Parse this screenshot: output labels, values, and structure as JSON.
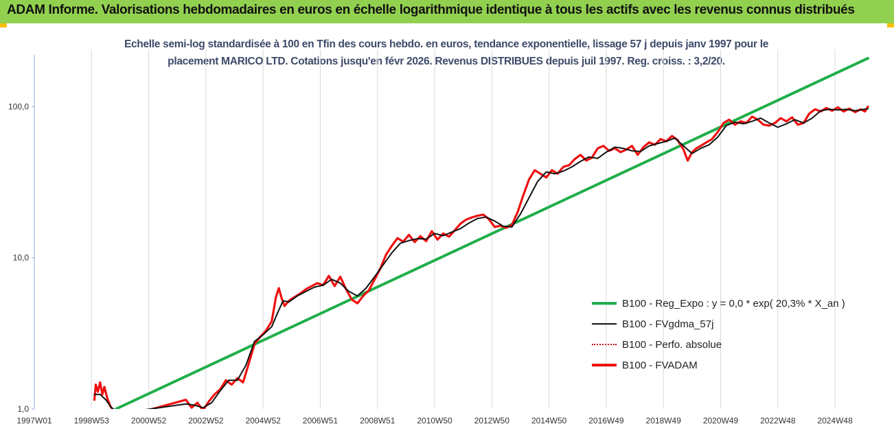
{
  "header": {
    "title": "ADAM Informe. Valorisations hebdomadaires en euros en échelle logarithmique identique à tous les actifs avec les revenus connus distribués",
    "band_color": "#92d050",
    "corner_color": "#f6c000"
  },
  "subtitle": {
    "line1": "Echelle semi-log standardisée à 100 en Tfin des cours hebdo. en euros, tendance exponentielle, lissage 57 j depuis janv 1997 pour le",
    "line2": "placement MARICO LTD. Cotations jusqu'en févr 2026. Revenus DISTRIBUES depuis juil 1997. Reg. croiss. : 3,2/20."
  },
  "chart_data": {
    "type": "line",
    "y_scale": "log",
    "ylim": [
      1,
      220
    ],
    "y_ticks": [
      1,
      10,
      100
    ],
    "y_tick_labels": [
      "1,0",
      "10,0",
      "100,0"
    ],
    "xlim": [
      1997.0,
      2026.15
    ],
    "x_ticks": [
      1997.0,
      1999.0,
      2001.0,
      2003.0,
      2005.0,
      2007.0,
      2009.0,
      2011.0,
      2013.0,
      2015.0,
      2017.0,
      2019.0,
      2021.0,
      2023.0,
      2025.0
    ],
    "x_tick_labels": [
      "1997W01",
      "1998W53",
      "2000W52",
      "2002W52",
      "2004W52",
      "2006W51",
      "2008W51",
      "2010W50",
      "2012W50",
      "2014W50",
      "2016W49",
      "2018W49",
      "2020W49",
      "2022W48",
      "2024W48"
    ],
    "grid": "vertical",
    "legend_position": "right",
    "series": [
      {
        "name": "B100 - Reg_Expo : y = 0,0 * exp( 20,3% *  X_an )",
        "color": "#1fae4a",
        "style": "line",
        "x": [
          1999.85,
          2026.15
        ],
        "y": [
          1.0,
          209.0
        ]
      },
      {
        "name": "B100 - FVgdma_57j",
        "color": "#111111",
        "style": "line",
        "x": [
          1999.1,
          1999.3,
          1999.5,
          1999.7,
          1999.9,
          2000.05,
          2002.3,
          2002.6,
          2002.9,
          2003.2,
          2003.5,
          2003.8,
          2004.1,
          2004.4,
          2004.7,
          2005.0,
          2005.3,
          2005.5,
          2005.7,
          2005.9,
          2006.2,
          2006.5,
          2006.8,
          2007.1,
          2007.4,
          2007.7,
          2008.0,
          2008.3,
          2008.6,
          2008.9,
          2009.2,
          2009.5,
          2009.8,
          2010.1,
          2010.4,
          2010.7,
          2011.0,
          2011.3,
          2011.6,
          2011.9,
          2012.2,
          2012.5,
          2012.8,
          2013.1,
          2013.4,
          2013.7,
          2014.0,
          2014.3,
          2014.6,
          2014.9,
          2015.2,
          2015.5,
          2015.8,
          2016.1,
          2016.4,
          2016.7,
          2017.0,
          2017.3,
          2017.6,
          2017.9,
          2018.2,
          2018.5,
          2018.8,
          2019.1,
          2019.4,
          2019.7,
          2020.0,
          2020.3,
          2020.6,
          2020.9,
          2021.2,
          2021.5,
          2021.8,
          2022.1,
          2022.4,
          2022.7,
          2023.0,
          2023.3,
          2023.6,
          2023.9,
          2024.2,
          2024.5,
          2024.8,
          2025.1,
          2025.4,
          2025.7,
          2026.0,
          2026.15
        ],
        "y": [
          1.25,
          1.25,
          1.15,
          1.02,
          0.96,
          0.94,
          1.08,
          1.06,
          1.02,
          1.1,
          1.32,
          1.55,
          1.55,
          1.95,
          2.8,
          3.1,
          3.5,
          4.3,
          5.2,
          5.1,
          5.6,
          6.0,
          6.4,
          6.6,
          7.2,
          6.8,
          6.0,
          5.6,
          6.3,
          7.5,
          9.0,
          10.8,
          12.5,
          13.0,
          13.4,
          13.3,
          14.5,
          14.0,
          14.8,
          15.6,
          17.0,
          18.2,
          18.6,
          17.5,
          16.2,
          16.0,
          19.5,
          25.0,
          32.0,
          37.0,
          36.0,
          37.5,
          40.0,
          43.5,
          46.5,
          45.5,
          50.0,
          54.0,
          53.0,
          51.0,
          50.5,
          55.0,
          57.0,
          59.0,
          62.0,
          55.0,
          49.0,
          53.0,
          56.0,
          63.0,
          75.0,
          79.0,
          77.0,
          80.0,
          84.0,
          78.0,
          73.0,
          77.0,
          82.0,
          78.0,
          84.0,
          94.0,
          96.0,
          95.0,
          96.0,
          94.0,
          96.0,
          97.0
        ]
      },
      {
        "name": "B100 - Perfo. absolue",
        "color": "#c00000",
        "style": "dotted"
      },
      {
        "name": "B100 - FVADAM",
        "color": "#ee1111",
        "style": "line",
        "x": [
          1999.1,
          1999.15,
          1999.22,
          1999.3,
          1999.38,
          1999.45,
          1999.55,
          1999.65,
          1999.75,
          1999.85,
          1999.95,
          2000.05,
          2002.3,
          2002.5,
          2002.7,
          2002.9,
          2003.1,
          2003.3,
          2003.5,
          2003.7,
          2003.9,
          2004.1,
          2004.3,
          2004.5,
          2004.7,
          2004.9,
          2005.1,
          2005.3,
          2005.45,
          2005.55,
          2005.65,
          2005.75,
          2005.9,
          2006.1,
          2006.3,
          2006.5,
          2006.7,
          2006.9,
          2007.1,
          2007.3,
          2007.5,
          2007.7,
          2007.9,
          2008.1,
          2008.3,
          2008.5,
          2008.7,
          2008.9,
          2009.1,
          2009.3,
          2009.5,
          2009.7,
          2009.9,
          2010.1,
          2010.3,
          2010.5,
          2010.7,
          2010.9,
          2011.1,
          2011.3,
          2011.5,
          2011.7,
          2011.9,
          2012.1,
          2012.3,
          2012.5,
          2012.7,
          2012.9,
          2013.1,
          2013.3,
          2013.5,
          2013.7,
          2013.9,
          2014.1,
          2014.3,
          2014.5,
          2014.7,
          2014.9,
          2015.1,
          2015.3,
          2015.5,
          2015.7,
          2015.9,
          2016.1,
          2016.3,
          2016.5,
          2016.7,
          2016.9,
          2017.1,
          2017.3,
          2017.5,
          2017.7,
          2017.9,
          2018.1,
          2018.3,
          2018.5,
          2018.7,
          2018.9,
          2019.1,
          2019.3,
          2019.5,
          2019.7,
          2019.85,
          2020.0,
          2020.15,
          2020.3,
          2020.5,
          2020.7,
          2020.9,
          2021.1,
          2021.3,
          2021.5,
          2021.7,
          2021.9,
          2022.1,
          2022.3,
          2022.5,
          2022.7,
          2022.9,
          2023.1,
          2023.3,
          2023.5,
          2023.7,
          2023.9,
          2024.1,
          2024.3,
          2024.5,
          2024.7,
          2024.9,
          2025.1,
          2025.3,
          2025.5,
          2025.7,
          2025.9,
          2026.05,
          2026.15
        ],
        "y": [
          1.15,
          1.45,
          1.3,
          1.5,
          1.25,
          1.4,
          1.18,
          1.05,
          0.98,
          0.92,
          0.9,
          0.88,
          1.15,
          1.02,
          1.1,
          0.98,
          1.12,
          1.25,
          1.35,
          1.55,
          1.45,
          1.6,
          1.5,
          2.0,
          2.7,
          3.0,
          3.3,
          3.8,
          5.5,
          6.3,
          5.4,
          4.8,
          5.2,
          5.5,
          5.8,
          6.2,
          6.5,
          6.8,
          6.6,
          7.6,
          6.5,
          7.5,
          6.2,
          5.3,
          5.0,
          5.6,
          6.1,
          7.2,
          8.5,
          10.5,
          12.0,
          13.5,
          12.8,
          14.2,
          12.7,
          13.9,
          12.9,
          15.0,
          13.2,
          14.5,
          13.8,
          15.2,
          16.8,
          17.9,
          18.5,
          19.0,
          19.3,
          18.0,
          16.0,
          16.3,
          15.8,
          16.5,
          20.0,
          26.0,
          33.0,
          38.0,
          36.0,
          34.0,
          38.0,
          36.0,
          40.0,
          41.0,
          45.0,
          48.0,
          44.0,
          46.0,
          53.0,
          55.0,
          51.0,
          53.0,
          50.0,
          52.0,
          55.0,
          48.0,
          54.0,
          58.0,
          56.0,
          61.0,
          59.0,
          64.0,
          60.0,
          52.0,
          44.0,
          50.0,
          53.0,
          55.0,
          58.0,
          61.0,
          68.0,
          78.0,
          82.0,
          76.0,
          80.0,
          78.0,
          86.0,
          82.0,
          76.0,
          75.0,
          78.0,
          84.0,
          80.0,
          85.0,
          76.0,
          78.0,
          90.0,
          96.0,
          93.0,
          98.0,
          94.0,
          99.0,
          93.0,
          97.0,
          92.0,
          96.0,
          93.0,
          100.0
        ]
      }
    ]
  }
}
